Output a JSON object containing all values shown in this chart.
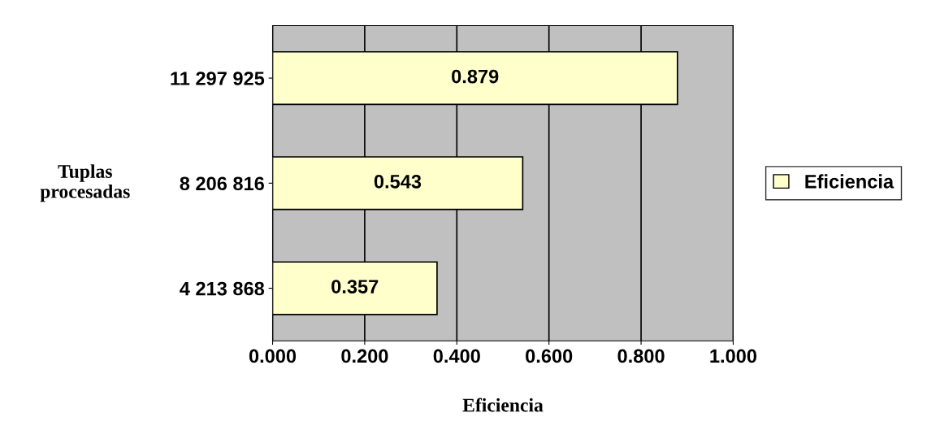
{
  "chart_data": {
    "type": "bar",
    "orientation": "horizontal",
    "categories": [
      "11 297 925",
      "8 206 816",
      "4 213 868"
    ],
    "series": [
      {
        "name": "Eficiencia",
        "color": "#ffffcc",
        "values": [
          0.879,
          0.543,
          0.357
        ]
      }
    ],
    "xlabel": "Eficiencia",
    "ylabel": "Tuplas\nprocesadas",
    "xlim": [
      0,
      1
    ],
    "xticks": [
      {
        "value": 0,
        "label": "0.000"
      },
      {
        "value": 0.2,
        "label": "0.200"
      },
      {
        "value": 0.4,
        "label": "0.400"
      },
      {
        "value": 0.6,
        "label": "0.600"
      },
      {
        "value": 0.8,
        "label": "0.800"
      },
      {
        "value": 1,
        "label": "1.000"
      }
    ],
    "grid": "x",
    "legend": "right",
    "data_labels": true
  }
}
